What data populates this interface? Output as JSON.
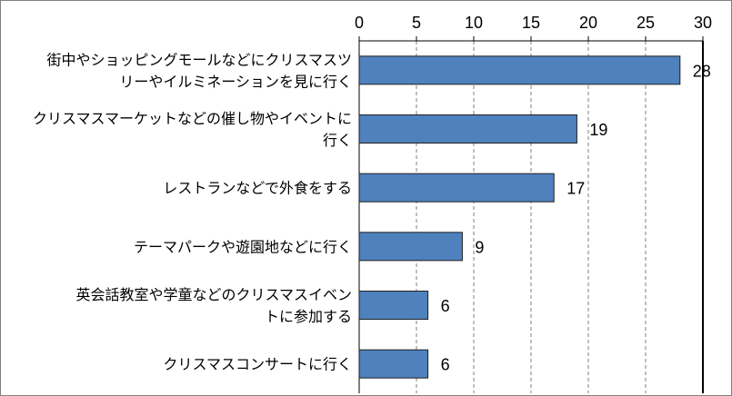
{
  "chart_data": {
    "type": "bar",
    "orientation": "horizontal",
    "categories": [
      [
        "街中やショッピングモールなどにクリスマスツ",
        "リーやイルミネーションを見に行く"
      ],
      [
        "クリスマスマーケットなどの催し物やイベントに",
        "行く"
      ],
      [
        "レストランなどで外食をする"
      ],
      [
        "テーマパークや遊園地などに行く"
      ],
      [
        "英会話教室や学童などのクリスマスイベン",
        "トに参加する"
      ],
      [
        "クリスマスコンサートに行く"
      ]
    ],
    "values": [
      28,
      19,
      17,
      9,
      6,
      6
    ],
    "xlim": [
      0,
      30
    ],
    "xticks": [
      0,
      5,
      10,
      15,
      20,
      25,
      30
    ],
    "x_axis_position": "top",
    "grid": "vertical dashed",
    "data_labels": true,
    "legend": "none",
    "colors": {
      "bar_fill": "#4f81bd",
      "bar_stroke": "#1f1f1f",
      "grid": "#7f7f7f",
      "axis": "#000000"
    }
  }
}
